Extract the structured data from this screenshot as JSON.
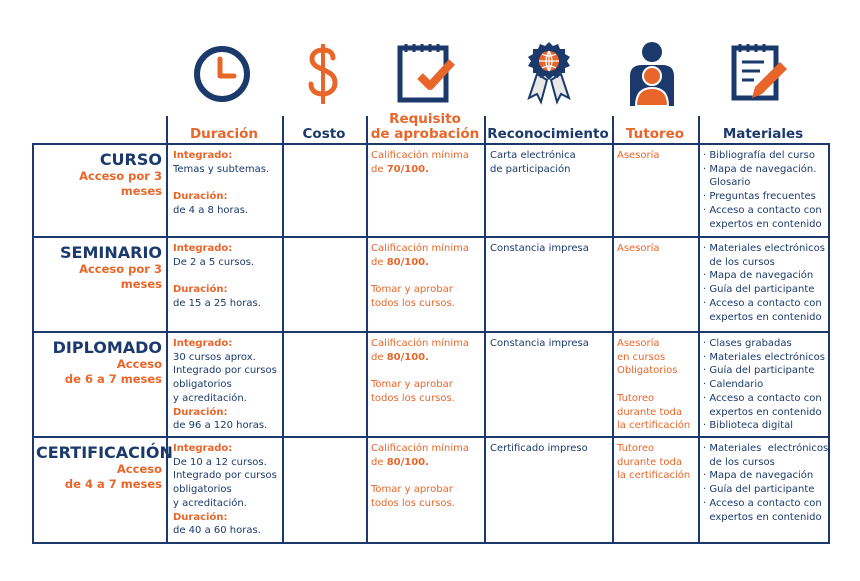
{
  "headers": {
    "duracion": "Duración",
    "costo": "Costo",
    "requisito_1": "Requisito",
    "requisito_2": "de aprobación",
    "reconocimiento": "Reconocimiento",
    "tutoreo": "Tutoreo",
    "materiales": "Materiales"
  },
  "colors": {
    "navy": "#1b3a6b",
    "orange": "#e8662a"
  },
  "icons": [
    "clock-icon",
    "dollar-icon",
    "checklist-icon",
    "award-ribbon-icon",
    "tutor-person-icon",
    "notepad-pencil-icon"
  ],
  "rows": [
    {
      "title": "CURSO",
      "subtitle": [
        "Acceso por 3 meses"
      ],
      "duracion": [
        {
          "t": "Integrado:",
          "bold": true
        },
        {
          "t": "Temas y subtemas."
        },
        {
          "t": ""
        },
        {
          "t": "Duración:",
          "bold": true
        },
        {
          "t": "de 4 a 8 horas."
        }
      ],
      "requisito": [
        {
          "t": "Calificación mínima"
        },
        {
          "t": "de 70/100.",
          "b": "70/100.",
          "pre": "de "
        }
      ],
      "reconocimiento": [
        "Carta electrónica",
        "de participación"
      ],
      "tutoreo": [
        "Asesoría"
      ],
      "materiales": [
        "· Bibliografía del curso",
        "· Mapa de navegación.",
        "  Glosario",
        "· Preguntas frecuentes",
        "· Acceso a contacto con",
        "  expertos en contenido"
      ]
    },
    {
      "title": "SEMINARIO",
      "subtitle": [
        "Acceso por 3 meses"
      ],
      "duracion": [
        {
          "t": "Integrado:",
          "bold": true
        },
        {
          "t": "De 2 a 5 cursos."
        },
        {
          "t": ""
        },
        {
          "t": "Duración:",
          "bold": true
        },
        {
          "t": "de 15 a 25 horas."
        }
      ],
      "requisito": [
        {
          "t": "Calificación mínima"
        },
        {
          "t": "de 80/100.",
          "b": "80/100.",
          "pre": "de "
        },
        {
          "t": ""
        },
        {
          "t": "Tomar y aprobar"
        },
        {
          "t": "todos los cursos."
        }
      ],
      "reconocimiento": [
        "Constancia impresa"
      ],
      "tutoreo": [
        "Asesoría"
      ],
      "materiales": [
        "· Materiales electrónicos",
        "  de los cursos",
        "· Mapa de navegación",
        "· Guía del participante",
        "· Acceso a contacto con",
        "  expertos en contenido"
      ]
    },
    {
      "title": "DIPLOMADO",
      "subtitle": [
        "Acceso",
        "de 6 a 7 meses"
      ],
      "duracion": [
        {
          "t": "Integrado:",
          "bold": true
        },
        {
          "t": "30 cursos aprox."
        },
        {
          "t": "Integrado por cursos"
        },
        {
          "t": "obligatorios"
        },
        {
          "t": "y acreditación."
        },
        {
          "t": "Duración:",
          "bold": true
        },
        {
          "t": "de 96 a 120 horas."
        }
      ],
      "requisito": [
        {
          "t": "Calificación mínima"
        },
        {
          "t": "de 80/100.",
          "b": "80/100.",
          "pre": "de "
        },
        {
          "t": ""
        },
        {
          "t": "Tomar y aprobar"
        },
        {
          "t": "todos los cursos."
        }
      ],
      "reconocimiento": [
        "Constancia impresa"
      ],
      "tutoreo": [
        "Asesoría",
        "en cursos",
        "Obligatorios",
        "",
        "Tutoreo",
        "durante toda",
        "la certificación"
      ],
      "materiales": [
        "· Clases grabadas",
        "· Materiales electrónicos",
        "· Guía del participante",
        "· Calendario",
        "· Acceso a contacto con",
        "  expertos en contenido",
        "· Biblioteca digital"
      ]
    },
    {
      "title": "CERTIFICACIÓN",
      "subtitle": [
        "Acceso",
        "de 4 a 7 meses"
      ],
      "duracion": [
        {
          "t": "Integrado:",
          "bold": true
        },
        {
          "t": "De 10 a 12 cursos."
        },
        {
          "t": "Integrado por cursos"
        },
        {
          "t": "obligatorios"
        },
        {
          "t": "y acreditación."
        },
        {
          "t": "Duración:",
          "bold": true
        },
        {
          "t": "de 40 a 60 horas."
        }
      ],
      "requisito": [
        {
          "t": "Calificación mínima"
        },
        {
          "t": "de 80/100.",
          "b": "80/100.",
          "pre": "de "
        },
        {
          "t": ""
        },
        {
          "t": "Tomar y aprobar"
        },
        {
          "t": "todos los cursos."
        }
      ],
      "reconocimiento": [
        "Certificado impreso"
      ],
      "tutoreo": [
        "Tutoreo",
        "durante toda",
        "la certificación"
      ],
      "materiales": [
        "· Materiales  electrónicos",
        "  de los cursos",
        "· Mapa de navegación",
        "· Guía del participante",
        "· Acceso a contacto con",
        "  expertos en contenido"
      ]
    }
  ]
}
